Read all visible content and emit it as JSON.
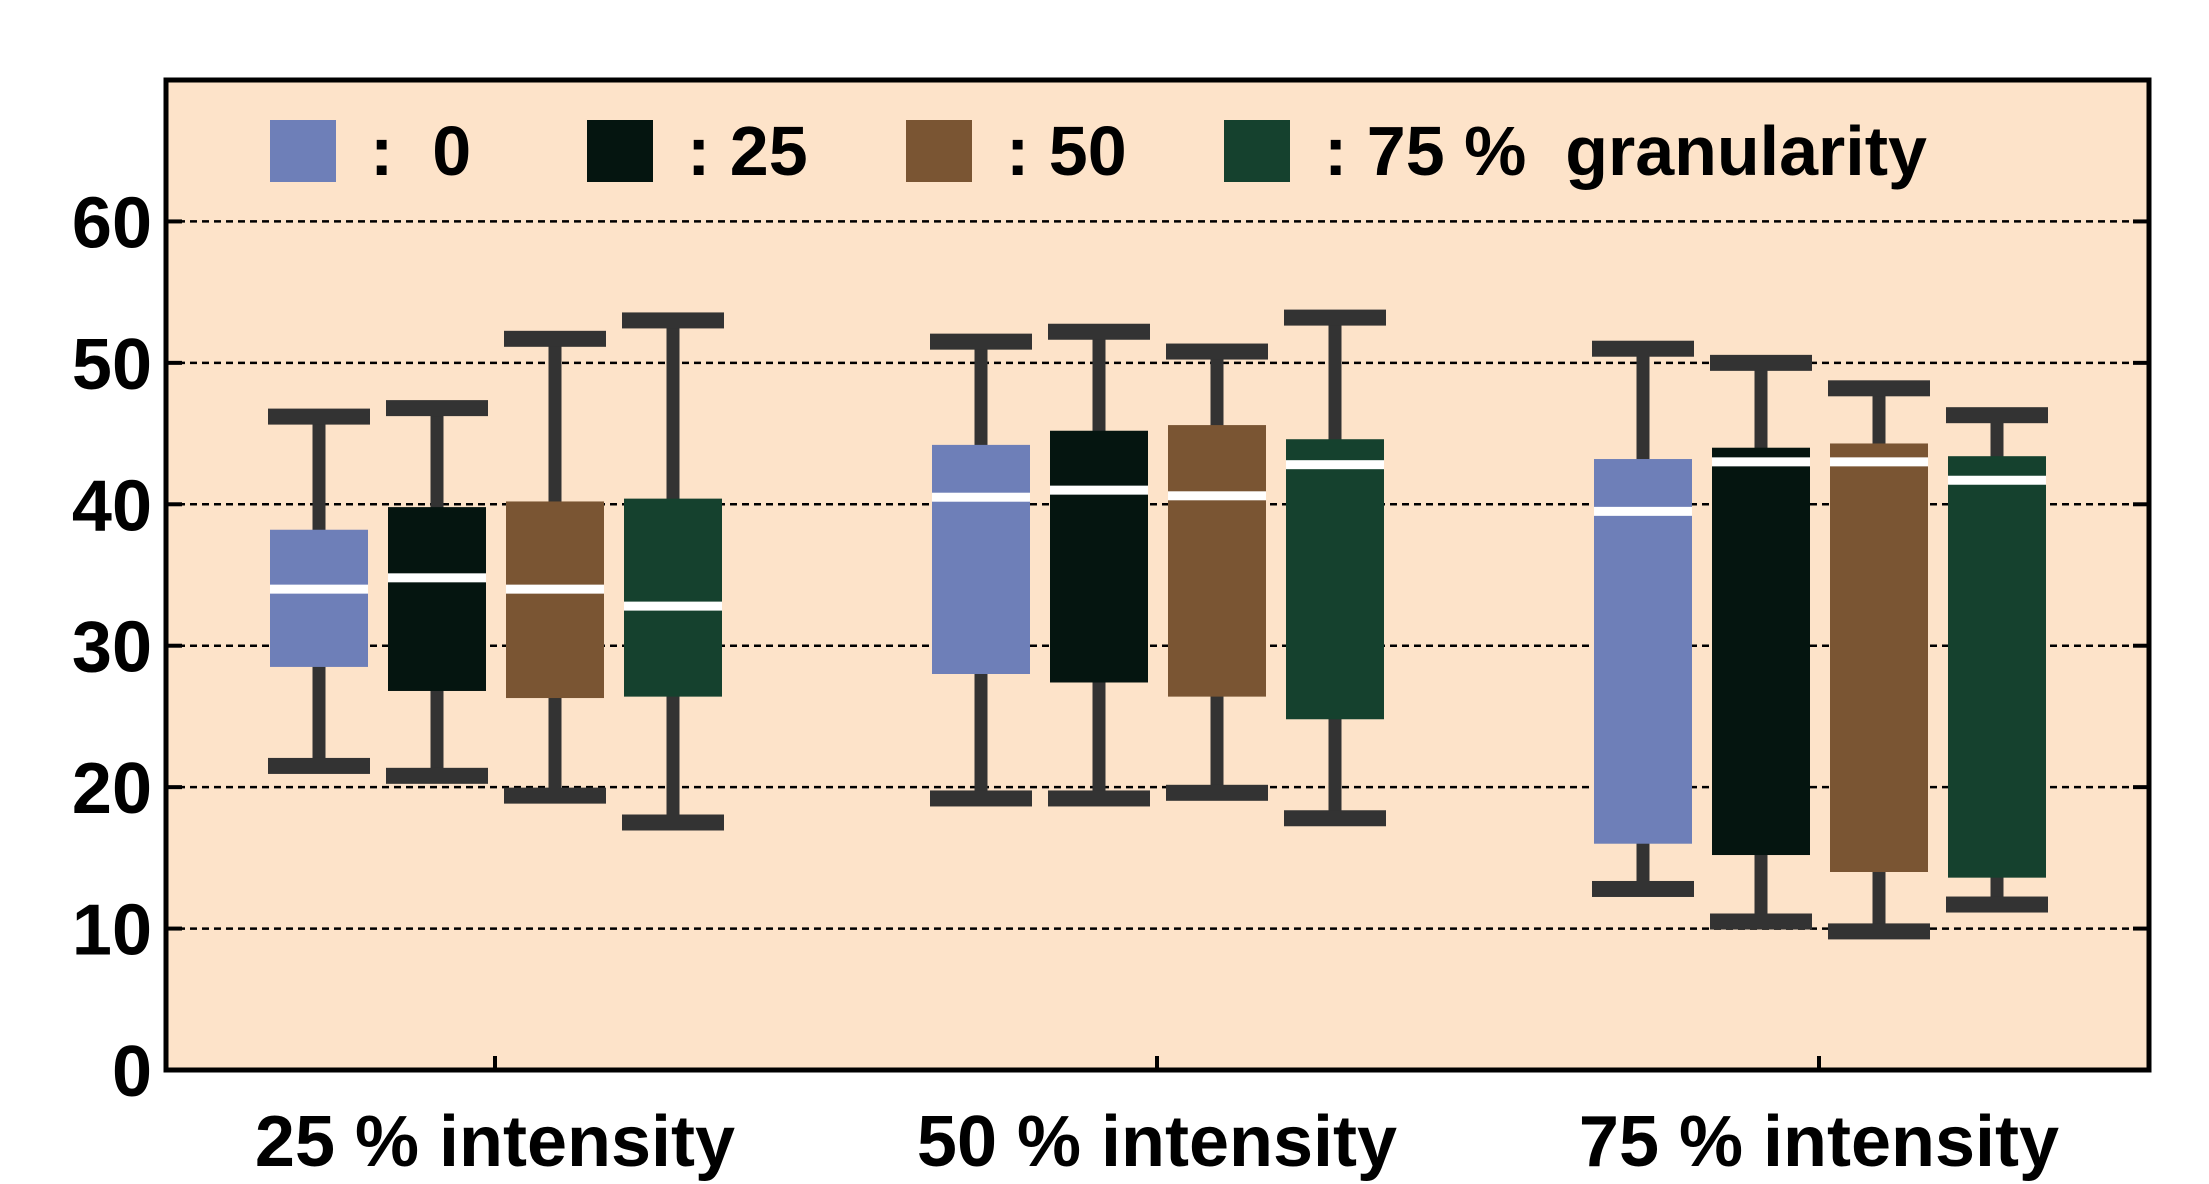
{
  "chart_data": {
    "type": "boxplot",
    "categories": [
      "25 % intensity",
      "50 % intensity",
      "75 % intensity"
    ],
    "ylim": [
      0,
      70
    ],
    "yticks": [
      0,
      10,
      20,
      30,
      40,
      50,
      60
    ],
    "grid": "horizontal dashed",
    "background": "#fde3c9",
    "legend": {
      "placement": "top",
      "entries": [
        ":  0",
        ": 25",
        ": 50",
        ": 75 %  granularity"
      ]
    },
    "series": [
      {
        "color": "#6e7fb8",
        "boxes": [
          {
            "whisker_low": 21.5,
            "q1": 28.5,
            "median": 34,
            "q3": 38.2,
            "whisker_high": 46.2
          },
          {
            "whisker_low": 19.2,
            "q1": 28,
            "median": 40.5,
            "q3": 44.2,
            "whisker_high": 51.5
          },
          {
            "whisker_low": 12.8,
            "q1": 16,
            "median": 39.5,
            "q3": 43.2,
            "whisker_high": 51
          }
        ]
      },
      {
        "color": "#051510",
        "boxes": [
          {
            "whisker_low": 20.8,
            "q1": 26.8,
            "median": 34.8,
            "q3": 39.8,
            "whisker_high": 46.8
          },
          {
            "whisker_low": 19.2,
            "q1": 27.4,
            "median": 41,
            "q3": 45.2,
            "whisker_high": 52.2
          },
          {
            "whisker_low": 10.5,
            "q1": 15.2,
            "median": 43,
            "q3": 44,
            "whisker_high": 50
          }
        ]
      },
      {
        "color": "#7a5533",
        "boxes": [
          {
            "whisker_low": 19.4,
            "q1": 26.3,
            "median": 34,
            "q3": 40.2,
            "whisker_high": 51.7
          },
          {
            "whisker_low": 19.6,
            "q1": 26.4,
            "median": 40.6,
            "q3": 45.6,
            "whisker_high": 50.8
          },
          {
            "whisker_low": 9.8,
            "q1": 14,
            "median": 43,
            "q3": 44.3,
            "whisker_high": 48.2
          }
        ]
      },
      {
        "color": "#15412e",
        "boxes": [
          {
            "whisker_low": 17.5,
            "q1": 26.4,
            "median": 32.8,
            "q3": 40.4,
            "whisker_high": 53
          },
          {
            "whisker_low": 17.8,
            "q1": 24.8,
            "median": 42.8,
            "q3": 44.6,
            "whisker_high": 53.2
          },
          {
            "whisker_low": 11.7,
            "q1": 13.6,
            "median": 41.7,
            "q3": 43.4,
            "whisker_high": 46.3
          }
        ]
      }
    ]
  }
}
